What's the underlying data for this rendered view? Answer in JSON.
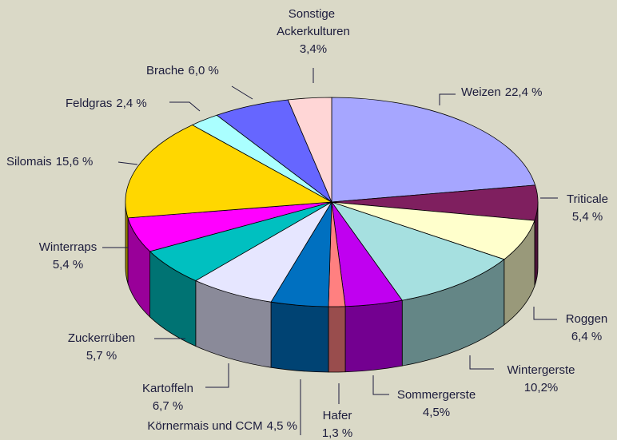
{
  "chart_data": {
    "type": "pie3d",
    "categories": [
      "Weizen",
      "Triticale",
      "Roggen",
      "Wintergerste",
      "Sommergerste",
      "Hafer",
      "Körnermais und CCM",
      "Kartoffeln",
      "Zuckerrüben",
      "Winterraps",
      "Silomais",
      "Feldgras",
      "Brache",
      "Sonstige Ackerkulturen"
    ],
    "values": [
      22.4,
      5.4,
      6.4,
      10.2,
      4.5,
      1.3,
      4.5,
      6.7,
      5.7,
      5.4,
      15.6,
      2.4,
      6.0,
      3.4
    ],
    "value_labels": [
      "22,4 %",
      "5,4 %",
      "6,4 %",
      "10,2%",
      "4,5%",
      "1,3 %",
      "4,5 %",
      "6,7 %",
      "5,7 %",
      "5,4 %",
      "15,6 %",
      "2,4 %",
      "6,0 %",
      "3,4%"
    ],
    "colors": [
      "#a6a6ff",
      "#7f1f5f",
      "#ffffcc",
      "#a6e0e0",
      "#c000f0",
      "#ff8080",
      "#0070c0",
      "#e6e6ff",
      "#00c0c0",
      "#ff00ff",
      "#ffd700",
      "#aaffff",
      "#6666ff",
      "#ffd6d6"
    ]
  }
}
